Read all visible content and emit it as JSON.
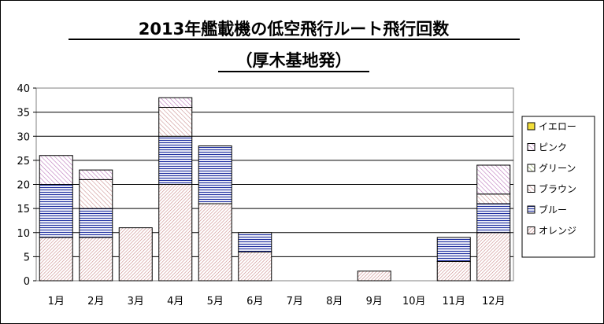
{
  "chart_data": {
    "type": "bar",
    "stacked": true,
    "title_line1": "2013年艦載機の低空飛行ルート飛行回数",
    "title_line2": "（厚木基地発）",
    "categories": [
      "1月",
      "2月",
      "3月",
      "4月",
      "5月",
      "6月",
      "7月",
      "8月",
      "9月",
      "10月",
      "11月",
      "12月"
    ],
    "y_ticks": [
      "0",
      "5",
      "10",
      "15",
      "20",
      "25",
      "30",
      "35",
      "40"
    ],
    "ylim": [
      0,
      40
    ],
    "grid": true,
    "legend_position": "right",
    "series": [
      {
        "name": "オレンジ",
        "values": [
          9,
          9,
          11,
          20,
          16,
          6,
          0,
          0,
          2,
          0,
          4,
          10
        ],
        "color": "#c98a8a",
        "pattern": "orange"
      },
      {
        "name": "ブルー",
        "values": [
          11,
          6,
          0,
          10,
          12,
          4,
          0,
          0,
          0,
          0,
          5,
          6
        ],
        "color": "#1f2fa0",
        "pattern": "blue"
      },
      {
        "name": "ブラウン",
        "values": [
          0,
          6,
          0,
          6,
          0,
          0,
          0,
          0,
          0,
          0,
          0,
          2
        ],
        "color": "#c98a8a",
        "pattern": "brown"
      },
      {
        "name": "グリーン",
        "values": [
          0,
          0,
          0,
          0,
          0,
          0,
          0,
          0,
          0,
          0,
          0,
          0
        ],
        "color": "#8aa84a",
        "pattern": "green"
      },
      {
        "name": "ピンク",
        "values": [
          6,
          2,
          0,
          2,
          0,
          0,
          0,
          0,
          0,
          0,
          0,
          6
        ],
        "color": "#b66ab6",
        "pattern": "pink"
      },
      {
        "name": "イエロー",
        "values": [
          0,
          0,
          0,
          0,
          0,
          0,
          0,
          0,
          0,
          0,
          0,
          0
        ],
        "color": "#e6c800",
        "pattern": "yellow"
      }
    ],
    "legend_order": [
      "イエロー",
      "ピンク",
      "グリーン",
      "ブラウン",
      "ブルー",
      "オレンジ"
    ]
  }
}
